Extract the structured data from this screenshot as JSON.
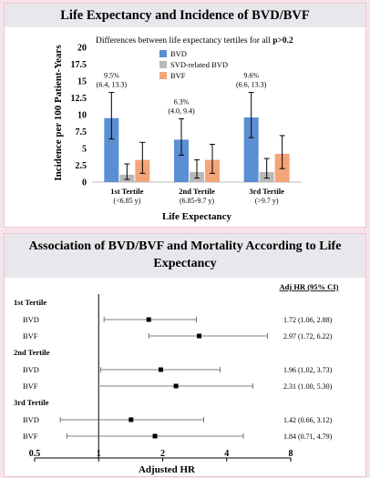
{
  "top_panel": {
    "title": "Life Expectancy and Incidence of BVD/BVF",
    "subtitle_prefix": "Differences between life expectancy tertiles for all ",
    "subtitle_value": "p>0.2"
  },
  "bottom_panel": {
    "title_line1": "Association of BVD/BVF and Mortality According to Life",
    "title_line2": "Expectancy",
    "column_header": "Adj HR (95% CI)"
  },
  "colors": {
    "BVD": "#5b8fd4",
    "SVD-related BVD": "#b9b9b9",
    "BVF": "#f4a578"
  },
  "chart_data": [
    {
      "type": "bar",
      "title": "",
      "xlabel": "Life Expectancy",
      "ylabel": "Incidence per 100 Patient-Years",
      "ylim": [
        0,
        20
      ],
      "yticks": [
        0,
        2.5,
        5,
        7.5,
        10,
        12.5,
        15,
        17.5,
        20
      ],
      "ytick_labels": [
        "0",
        "2.5",
        "5",
        "7.5",
        "10",
        "12.5",
        "15",
        "17.5",
        "20"
      ],
      "categories": [
        "1st Tertile",
        "2nd Tertile",
        "3rd Tertile"
      ],
      "category_sublabels": [
        "(<6.85 y)",
        "(6.85-9.7 y)",
        "(>9.7 y)"
      ],
      "legend_position": "top-center",
      "series": [
        {
          "name": "BVD",
          "values": [
            9.5,
            6.3,
            9.6
          ],
          "err_low": [
            6.4,
            4.0,
            6.6
          ],
          "err_high": [
            13.3,
            9.4,
            13.3
          ]
        },
        {
          "name": "SVD-related BVD",
          "values": [
            1.1,
            1.5,
            1.5
          ],
          "err_low": [
            0.4,
            0.6,
            0.6
          ],
          "err_high": [
            2.7,
            3.3,
            3.5
          ]
        },
        {
          "name": "BVF",
          "values": [
            3.3,
            3.3,
            4.2
          ],
          "err_low": [
            1.3,
            1.3,
            2.0
          ],
          "err_high": [
            5.9,
            5.6,
            6.9
          ]
        }
      ],
      "annotations": [
        {
          "line1": "9.5%",
          "line2": "(6.4, 13.3)"
        },
        {
          "line1": "6.3%",
          "line2": "(4.0, 9.4)"
        },
        {
          "line1": "9.6%",
          "line2": "(6.6, 13.3)"
        }
      ]
    },
    {
      "type": "forest",
      "xlabel": "Adjusted HR",
      "xscale": "log",
      "xlim": [
        0.5,
        8
      ],
      "xticks": [
        0.5,
        1,
        2,
        4,
        8
      ],
      "xtick_labels": [
        "0.5",
        "1",
        "2",
        "4",
        "8"
      ],
      "reference_line": 1,
      "groups": [
        {
          "name": "1st Tertile",
          "rows": [
            {
              "label": "BVD",
              "hr": 1.72,
              "lo": 1.06,
              "hi": 2.88,
              "text": "1.72 (1.06, 2.88)"
            },
            {
              "label": "BVF",
              "hr": 2.97,
              "lo": 1.72,
              "hi": 6.22,
              "text": "2.97 (1.72, 6.22)"
            }
          ]
        },
        {
          "name": "2nd Tertile",
          "rows": [
            {
              "label": "BVD",
              "hr": 1.96,
              "lo": 1.02,
              "hi": 3.73,
              "text": "1.96 (1.02, 3.73)"
            },
            {
              "label": "BVF",
              "hr": 2.31,
              "lo": 1.0,
              "hi": 5.3,
              "text": "2.31 (1.00, 5.30)"
            }
          ]
        },
        {
          "name": "3rd Tertile",
          "rows": [
            {
              "label": "BVD",
              "hr": 1.42,
              "lo": 0.66,
              "hi": 3.12,
              "text": "1.42 (0.66, 3.12)"
            },
            {
              "label": "BVF",
              "hr": 1.84,
              "lo": 0.71,
              "hi": 4.79,
              "text": "1.84 (0.71, 4.79)"
            }
          ]
        }
      ]
    }
  ]
}
